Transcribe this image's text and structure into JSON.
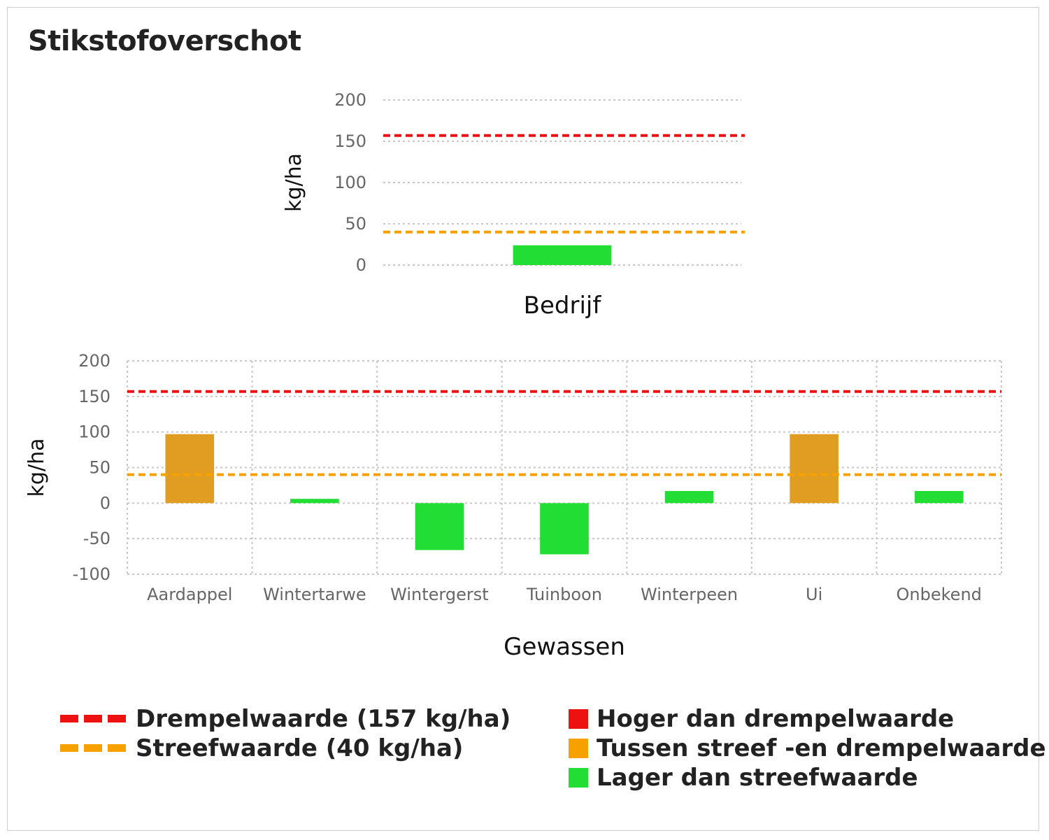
{
  "title": "Stikstofoverschot",
  "colors": {
    "red": "#ee1111",
    "orange": "#f6a100",
    "green": "#22dd33",
    "bar_orange": "#e19d22",
    "grid": "#c8c8c8"
  },
  "chart_data": [
    {
      "type": "bar",
      "categories": [
        "Bedrijf"
      ],
      "values": [
        24
      ],
      "bar_status": [
        "lager"
      ],
      "ylabel": "kg/ha",
      "ylim": [
        0,
        200
      ],
      "yticks": [
        0,
        50,
        100,
        150,
        200
      ],
      "yticklabels": [
        "0",
        "50",
        "100",
        "150",
        "200"
      ],
      "reference_lines": [
        {
          "value": 157,
          "color": "#ee1111"
        },
        {
          "value": 40,
          "color": "#f6a100"
        }
      ],
      "grid": "horizontal-dotted"
    },
    {
      "type": "bar",
      "categories": [
        "Aardappel",
        "Wintertarwe",
        "Wintergerst",
        "Tuinboon",
        "Winterpeen",
        "Ui",
        "Onbekend"
      ],
      "values": [
        97,
        6,
        -66,
        -72,
        17,
        97,
        17
      ],
      "bar_status": [
        "tussen",
        "lager",
        "lager",
        "lager",
        "lager",
        "tussen",
        "lager"
      ],
      "xlabel": "Gewassen",
      "ylabel": "kg/ha",
      "ylim": [
        -100,
        200
      ],
      "yticks": [
        -100,
        -50,
        0,
        50,
        100,
        150,
        200
      ],
      "yticklabels": [
        "-100",
        "-50",
        "0",
        "50",
        "100",
        "150",
        "200"
      ],
      "reference_lines": [
        {
          "value": 157,
          "color": "#ee1111"
        },
        {
          "value": 40,
          "color": "#f6a100"
        }
      ],
      "grid": "both-dotted"
    }
  ],
  "legend": {
    "lines": [
      {
        "label": "Drempelwaarde (157 kg/ha)",
        "color": "#ee1111"
      },
      {
        "label": "Streefwaarde (40 kg/ha)",
        "color": "#f6a100"
      }
    ],
    "swatches": [
      {
        "label": "Hoger dan drempelwaarde",
        "color": "#ee1111"
      },
      {
        "label": "Tussen streef -en drempelwaarde",
        "color": "#f6a100"
      },
      {
        "label": "Lager dan streefwaarde",
        "color": "#22dd33"
      }
    ]
  }
}
